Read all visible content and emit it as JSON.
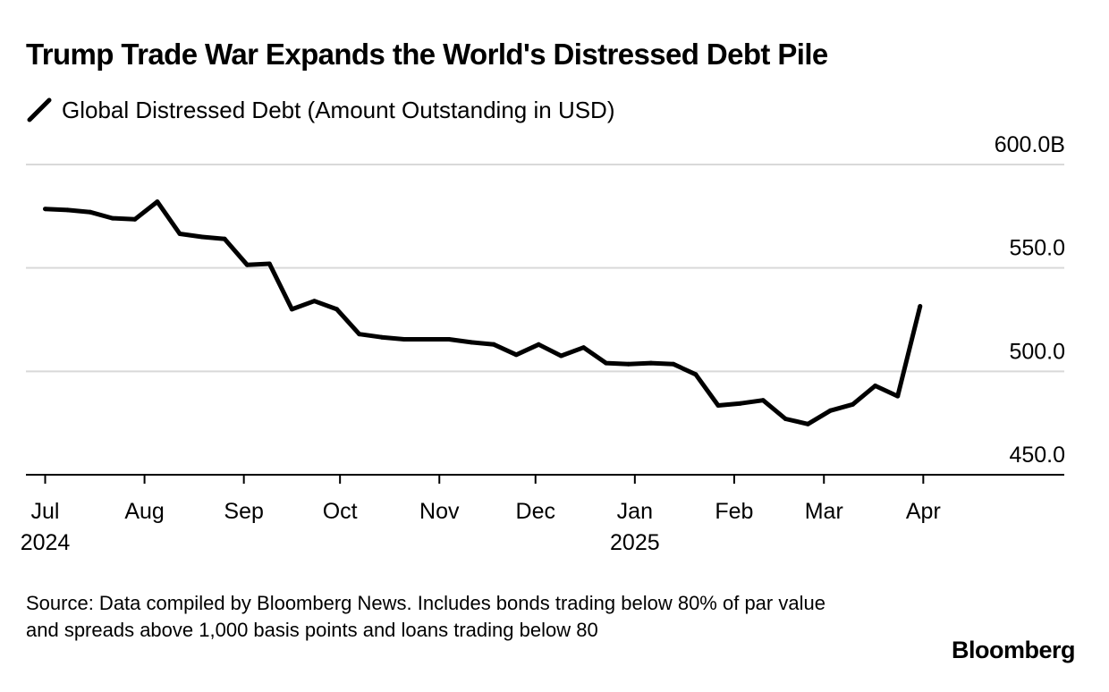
{
  "title": "Trump Trade War Expands the World's Distressed Debt Pile",
  "legend_label": "Global Distressed Debt (Amount Outstanding in USD)",
  "source": "Source: Data compiled by Bloomberg News. Includes bonds trading below 80% of par value and spreads above 1,000 basis points and loans trading below 80",
  "brand": "Bloomberg",
  "colors": {
    "line": "#000000",
    "grid": "#d9d9d9",
    "axis": "#000000",
    "text": "#000000"
  },
  "chart_data": {
    "type": "line",
    "title": "Trump Trade War Expands the World's Distressed Debt Pile",
    "xlabel": "",
    "ylabel": "",
    "ylim": [
      450,
      600
    ],
    "y_ticks": [
      {
        "value": 600,
        "label": "600.0B"
      },
      {
        "value": 550,
        "label": "550.0"
      },
      {
        "value": 500,
        "label": "500.0"
      },
      {
        "value": 450,
        "label": "450.0"
      }
    ],
    "xlim": [
      "2024-06-25",
      "2025-05-15"
    ],
    "x_ticks": [
      {
        "date": "2024-07-01",
        "label": "Jul",
        "year": "2024"
      },
      {
        "date": "2024-08-01",
        "label": "Aug",
        "year": ""
      },
      {
        "date": "2024-09-01",
        "label": "Sep",
        "year": ""
      },
      {
        "date": "2024-10-01",
        "label": "Oct",
        "year": ""
      },
      {
        "date": "2024-11-01",
        "label": "Nov",
        "year": ""
      },
      {
        "date": "2024-12-01",
        "label": "Dec",
        "year": ""
      },
      {
        "date": "2025-01-01",
        "label": "Jan",
        "year": "2025"
      },
      {
        "date": "2025-02-01",
        "label": "Feb",
        "year": ""
      },
      {
        "date": "2025-03-01",
        "label": "Mar",
        "year": ""
      },
      {
        "date": "2025-04-01",
        "label": "Apr",
        "year": ""
      }
    ],
    "grid": true,
    "legend_position": "top-left",
    "series": [
      {
        "name": "Global Distressed Debt (Amount Outstanding in USD)",
        "points": [
          {
            "x": "2024-07-01",
            "y": 578.5
          },
          {
            "x": "2024-07-08",
            "y": 578.0
          },
          {
            "x": "2024-07-15",
            "y": 577.0
          },
          {
            "x": "2024-07-22",
            "y": 574.0
          },
          {
            "x": "2024-07-29",
            "y": 573.5
          },
          {
            "x": "2024-08-05",
            "y": 582.0
          },
          {
            "x": "2024-08-12",
            "y": 566.5
          },
          {
            "x": "2024-08-19",
            "y": 565.0
          },
          {
            "x": "2024-08-26",
            "y": 564.0
          },
          {
            "x": "2024-09-02",
            "y": 551.5
          },
          {
            "x": "2024-09-09",
            "y": 552.0
          },
          {
            "x": "2024-09-16",
            "y": 530.0
          },
          {
            "x": "2024-09-23",
            "y": 534.0
          },
          {
            "x": "2024-09-30",
            "y": 530.0
          },
          {
            "x": "2024-10-07",
            "y": 518.0
          },
          {
            "x": "2024-10-14",
            "y": 516.5
          },
          {
            "x": "2024-10-21",
            "y": 515.5
          },
          {
            "x": "2024-10-28",
            "y": 515.5
          },
          {
            "x": "2024-11-04",
            "y": 515.5
          },
          {
            "x": "2024-11-11",
            "y": 514.0
          },
          {
            "x": "2024-11-18",
            "y": 513.0
          },
          {
            "x": "2024-11-25",
            "y": 508.0
          },
          {
            "x": "2024-12-02",
            "y": 513.0
          },
          {
            "x": "2024-12-09",
            "y": 507.5
          },
          {
            "x": "2024-12-16",
            "y": 511.5
          },
          {
            "x": "2024-12-23",
            "y": 504.0
          },
          {
            "x": "2024-12-30",
            "y": 503.5
          },
          {
            "x": "2025-01-06",
            "y": 504.0
          },
          {
            "x": "2025-01-13",
            "y": 503.5
          },
          {
            "x": "2025-01-20",
            "y": 498.5
          },
          {
            "x": "2025-01-27",
            "y": 483.5
          },
          {
            "x": "2025-02-03",
            "y": 484.5
          },
          {
            "x": "2025-02-10",
            "y": 486.0
          },
          {
            "x": "2025-02-17",
            "y": 477.0
          },
          {
            "x": "2025-02-24",
            "y": 474.5
          },
          {
            "x": "2025-03-03",
            "y": 481.0
          },
          {
            "x": "2025-03-10",
            "y": 484.0
          },
          {
            "x": "2025-03-17",
            "y": 493.0
          },
          {
            "x": "2025-03-24",
            "y": 488.0
          },
          {
            "x": "2025-03-31",
            "y": 531.5
          }
        ]
      }
    ]
  }
}
